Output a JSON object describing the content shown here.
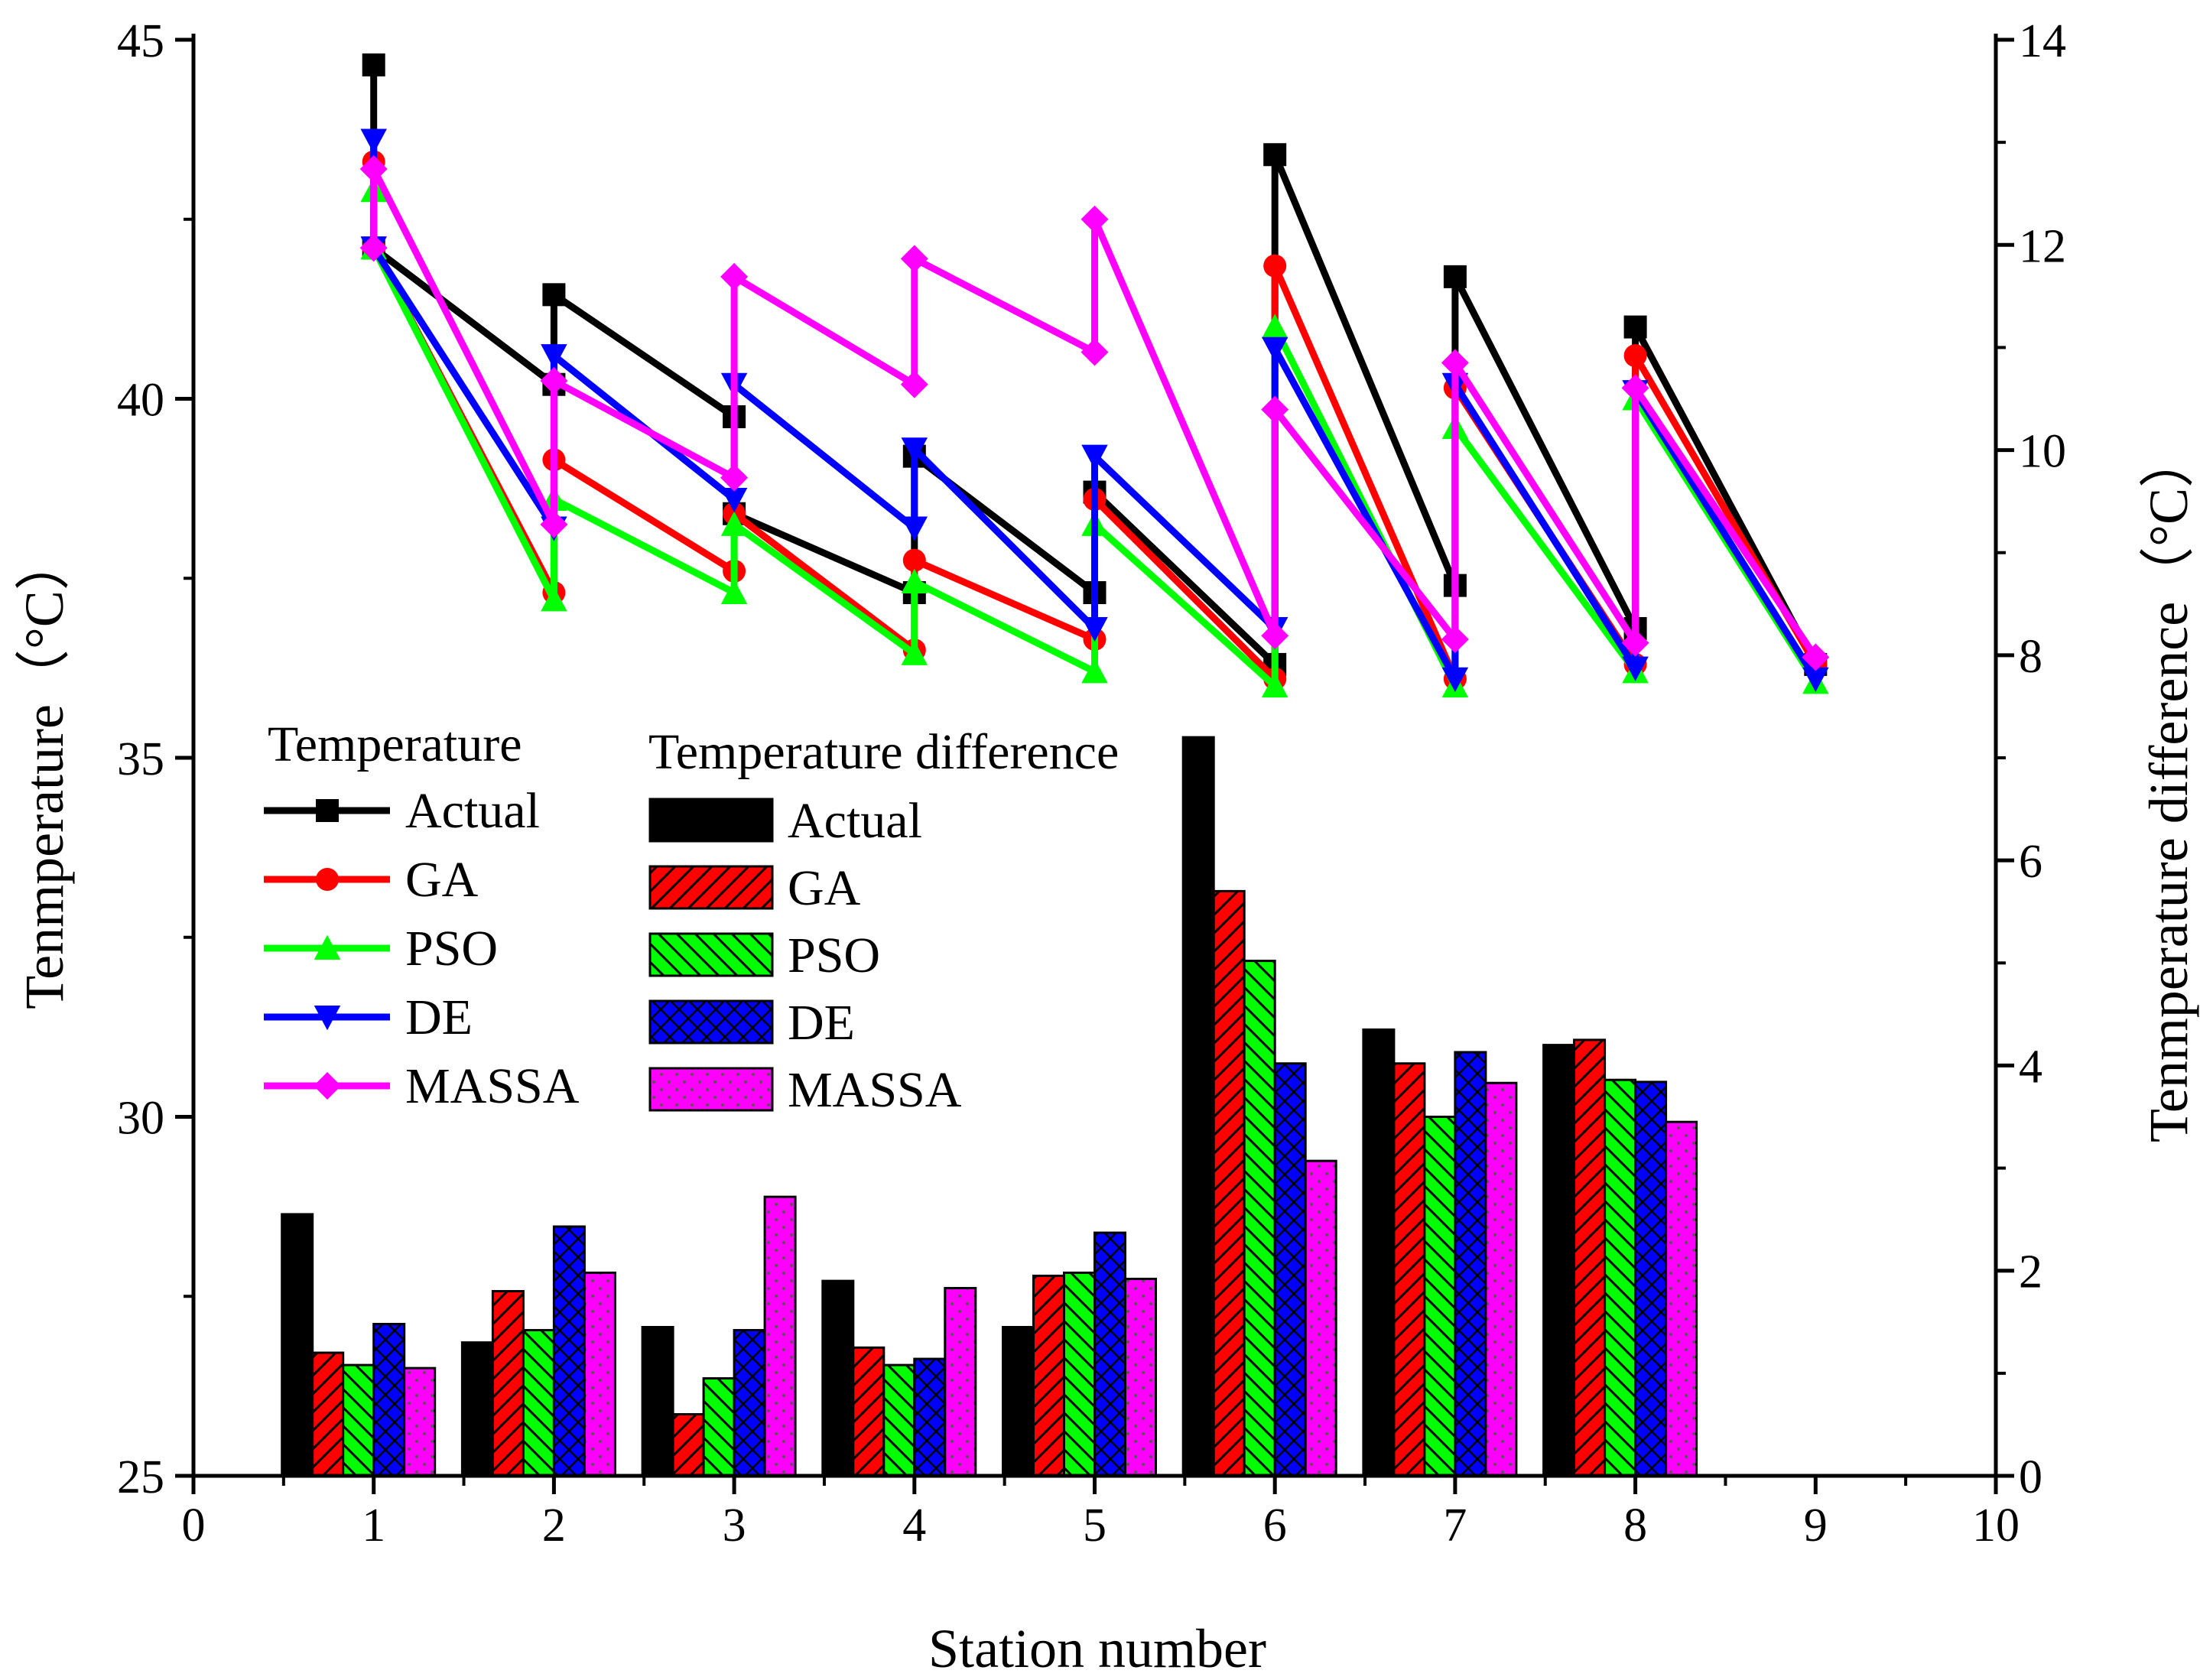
{
  "chart_data": {
    "type": "bar+line (dual axis)",
    "xlabel": "Station number",
    "ylabel_left": "Tenmperature（°C）",
    "ylabel_right": "Tenmperature difference（°C）",
    "xlim": [
      0,
      10
    ],
    "ylim_left": [
      25,
      45
    ],
    "ylim_right": [
      0,
      14
    ],
    "x_ticks": [
      "0",
      "1",
      "2",
      "3",
      "4",
      "5",
      "6",
      "7",
      "8",
      "9",
      "10"
    ],
    "y_left_ticks": [
      "25",
      "30",
      "35",
      "40",
      "45"
    ],
    "y_right_ticks": [
      "0",
      "2",
      "4",
      "6",
      "8",
      "10",
      "12",
      "14"
    ],
    "line_legend_title": "Temperature",
    "bar_legend_title": "Temperature difference",
    "colors": {
      "Actual": "#000000",
      "GA": "#ff0000",
      "PSO": "#00ff00",
      "DE": "#0000ff",
      "MASSA": "#ff00ff"
    },
    "temperature_series": [
      {
        "name": "Actual",
        "marker": "square",
        "points": [
          [
            1,
            44.65
          ],
          [
            1,
            42.1
          ],
          [
            2,
            40.2
          ],
          [
            2,
            41.45
          ],
          [
            3,
            39.75
          ],
          [
            3,
            38.4
          ],
          [
            4,
            37.3
          ],
          [
            4,
            39.2
          ],
          [
            5,
            37.3
          ],
          [
            5,
            38.7
          ],
          [
            6,
            36.3
          ],
          [
            6,
            43.4
          ],
          [
            7,
            37.4
          ],
          [
            7,
            41.7
          ],
          [
            8,
            36.8
          ],
          [
            8,
            41
          ],
          [
            9,
            36.3
          ]
        ]
      },
      {
        "name": "GA",
        "marker": "circle",
        "points": [
          [
            1,
            43.3
          ],
          [
            1,
            42.1
          ],
          [
            2,
            37.3
          ],
          [
            2,
            39.15
          ],
          [
            3,
            37.6
          ],
          [
            3,
            38.4
          ],
          [
            4,
            36.5
          ],
          [
            4,
            37.75
          ],
          [
            5,
            36.65
          ],
          [
            5,
            38.6
          ],
          [
            6,
            36.1
          ],
          [
            6,
            41.85
          ],
          [
            7,
            36.1
          ],
          [
            7,
            40.15
          ],
          [
            8,
            36.3
          ],
          [
            8,
            40.6
          ],
          [
            9,
            36.3
          ]
        ]
      },
      {
        "name": "PSO",
        "marker": "triangle-up",
        "points": [
          [
            1,
            42.9
          ],
          [
            1,
            42.1
          ],
          [
            2,
            37.2
          ],
          [
            2,
            38.6
          ],
          [
            3,
            37.3
          ],
          [
            3,
            38.25
          ],
          [
            4,
            36.45
          ],
          [
            4,
            37.45
          ],
          [
            5,
            36.2
          ],
          [
            5,
            38.25
          ],
          [
            6,
            36
          ],
          [
            6,
            41
          ],
          [
            7,
            36
          ],
          [
            7,
            39.6
          ],
          [
            8,
            36.2
          ],
          [
            8,
            40
          ],
          [
            9,
            36.05
          ]
        ]
      },
      {
        "name": "DE",
        "marker": "triangle-down",
        "points": [
          [
            1,
            43.6
          ],
          [
            1,
            42.1
          ],
          [
            2,
            38.2
          ],
          [
            2,
            40.6
          ],
          [
            3,
            38.6
          ],
          [
            3,
            40.2
          ],
          [
            4,
            38.2
          ],
          [
            4,
            39.3
          ],
          [
            5,
            36.8
          ],
          [
            5,
            39.2
          ],
          [
            6,
            36.8
          ],
          [
            6,
            40.7
          ],
          [
            7,
            36.1
          ],
          [
            7,
            40.2
          ],
          [
            8,
            36.25
          ],
          [
            8,
            40.1
          ],
          [
            9,
            36.1
          ]
        ]
      },
      {
        "name": "MASSA",
        "marker": "diamond",
        "points": [
          [
            1,
            42.1
          ],
          [
            1,
            43.2
          ],
          [
            2,
            38.25
          ],
          [
            2,
            40.25
          ],
          [
            3,
            38.9
          ],
          [
            3,
            41.7
          ],
          [
            4,
            40.2
          ],
          [
            4,
            41.95
          ],
          [
            5,
            40.65
          ],
          [
            5,
            42.5
          ],
          [
            6,
            36.7
          ],
          [
            6,
            39.85
          ],
          [
            7,
            36.65
          ],
          [
            7,
            40.5
          ],
          [
            8,
            36.6
          ],
          [
            8,
            40.15
          ],
          [
            9,
            36.4
          ]
        ]
      }
    ],
    "difference_categories": [
      "1",
      "2",
      "3",
      "4",
      "5",
      "6",
      "7",
      "8"
    ],
    "difference_series": [
      {
        "name": "Actual",
        "pattern": "solid",
        "values": [
          2.55,
          1.3,
          1.45,
          1.9,
          1.45,
          7.2,
          4.35,
          4.2
        ]
      },
      {
        "name": "GA",
        "pattern": "diagonal",
        "values": [
          1.2,
          1.8,
          0.6,
          1.25,
          1.95,
          5.7,
          4.02,
          4.25
        ]
      },
      {
        "name": "PSO",
        "pattern": "back-diagonal",
        "values": [
          1.08,
          1.42,
          0.95,
          1.08,
          1.98,
          5.02,
          3.5,
          3.86
        ]
      },
      {
        "name": "DE",
        "pattern": "crosshatch",
        "values": [
          1.48,
          2.43,
          1.42,
          1.14,
          2.37,
          4.02,
          4.13,
          3.84
        ]
      },
      {
        "name": "MASSA",
        "pattern": "dots",
        "values": [
          1.05,
          1.98,
          2.72,
          1.83,
          1.92,
          3.07,
          3.83,
          3.45
        ]
      }
    ]
  }
}
